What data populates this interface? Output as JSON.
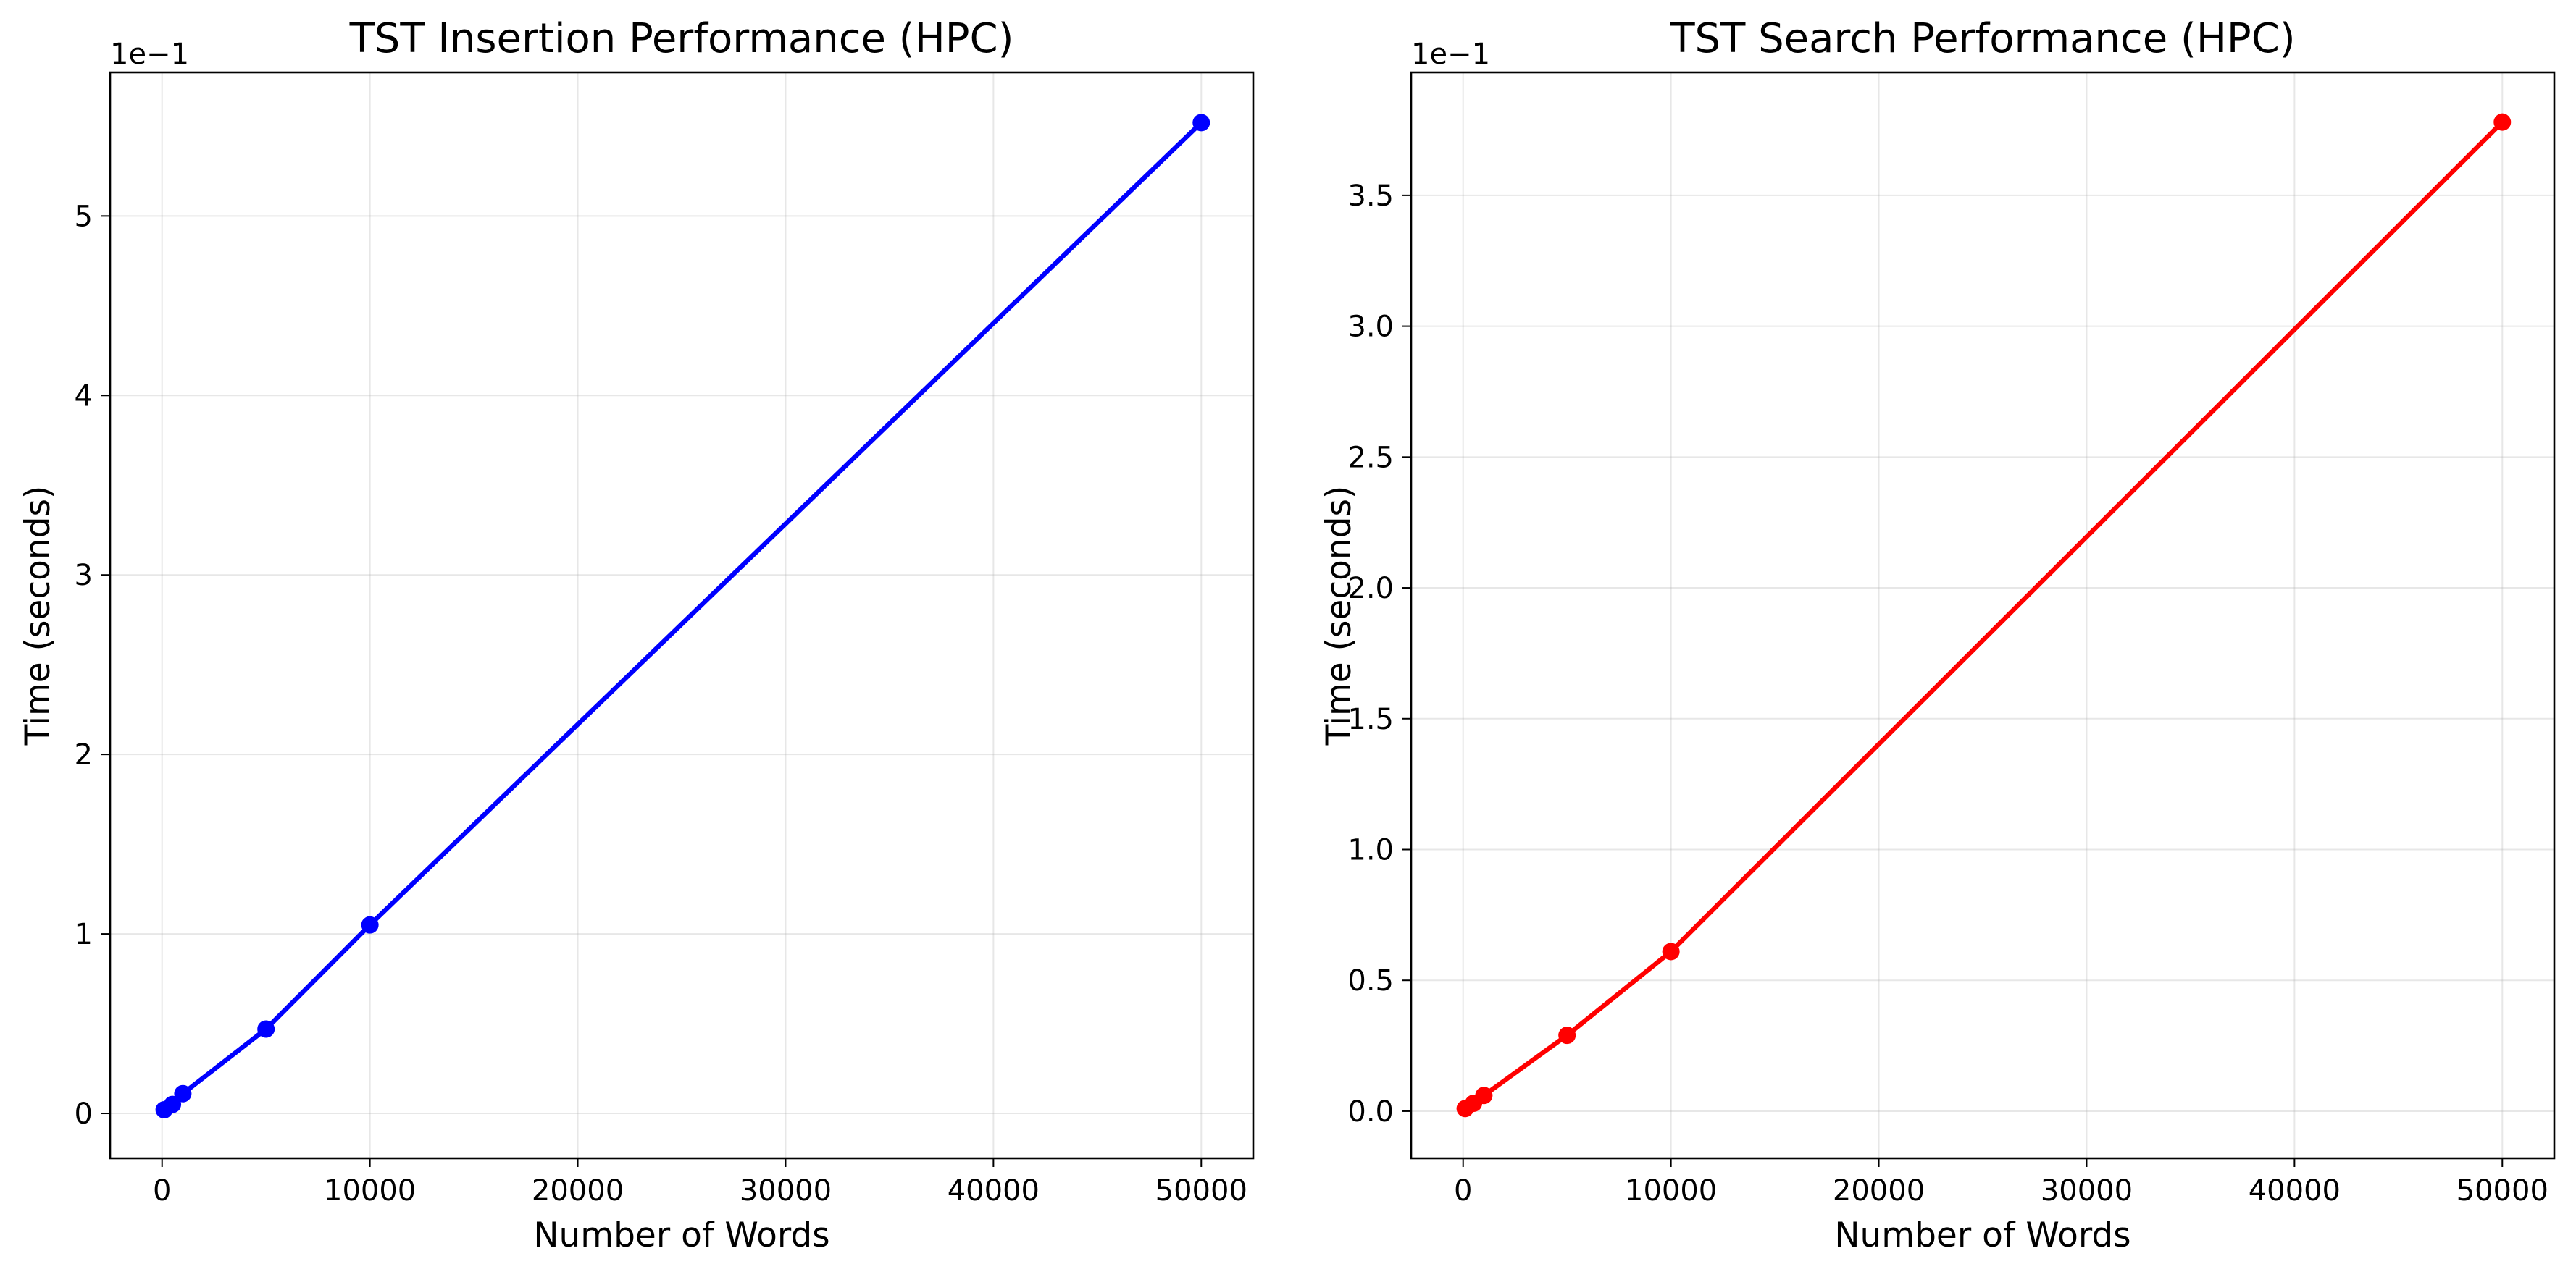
{
  "chart_data": [
    {
      "type": "line",
      "title": "TST Insertion Performance (HPC)",
      "xlabel": "Number of Words",
      "ylabel": "Time (seconds)",
      "y_offset_label": "1e−1",
      "y_scale_factor": 0.1,
      "xlim": [
        -2500,
        52500
      ],
      "ylim": [
        -0.025,
        0.58
      ],
      "grid": true,
      "xticks": [
        0,
        10000,
        20000,
        30000,
        40000,
        50000
      ],
      "xtick_labels": [
        "0",
        "10000",
        "20000",
        "30000",
        "40000",
        "50000"
      ],
      "yticks": [
        0,
        0.1,
        0.2,
        0.3,
        0.4,
        0.5
      ],
      "ytick_labels": [
        "0",
        "1",
        "2",
        "3",
        "4",
        "5"
      ],
      "series": [
        {
          "color": "#0000ff",
          "marker": "circle",
          "x": [
            100,
            500,
            1000,
            5000,
            10000,
            50000
          ],
          "y": [
            0.002,
            0.005,
            0.011,
            0.047,
            0.105,
            0.552
          ]
        }
      ]
    },
    {
      "type": "line",
      "title": "TST Search Performance (HPC)",
      "xlabel": "Number of Words",
      "ylabel": "Time (seconds)",
      "y_offset_label": "1e−1",
      "y_scale_factor": 0.1,
      "xlim": [
        -2500,
        52500
      ],
      "ylim": [
        -0.018,
        0.397
      ],
      "grid": true,
      "xticks": [
        0,
        10000,
        20000,
        30000,
        40000,
        50000
      ],
      "xtick_labels": [
        "0",
        "10000",
        "20000",
        "30000",
        "40000",
        "50000"
      ],
      "yticks": [
        0,
        0.05,
        0.1,
        0.15,
        0.2,
        0.25,
        0.3,
        0.35
      ],
      "ytick_labels": [
        "0.0",
        "0.5",
        "1.0",
        "1.5",
        "2.0",
        "2.5",
        "3.0",
        "3.5"
      ],
      "series": [
        {
          "color": "#ff0000",
          "marker": "circle",
          "x": [
            100,
            500,
            1000,
            5000,
            10000,
            50000
          ],
          "y": [
            0.001,
            0.003,
            0.006,
            0.029,
            0.061,
            0.378
          ]
        }
      ]
    }
  ]
}
